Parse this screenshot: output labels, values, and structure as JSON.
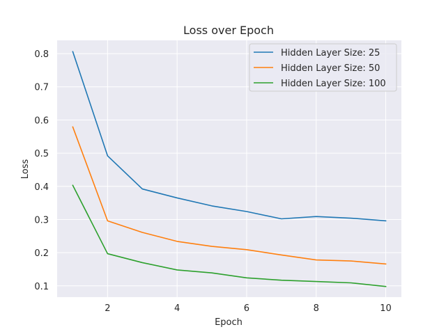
{
  "chart_data": {
    "type": "line",
    "title": "Loss over Epoch",
    "xlabel": "Epoch",
    "ylabel": "Loss",
    "xlim": [
      0.55,
      10.45
    ],
    "ylim": [
      0.066,
      0.84
    ],
    "xticks": [
      2,
      4,
      6,
      8,
      10
    ],
    "yticks": [
      0.1,
      0.2,
      0.3,
      0.4,
      0.5,
      0.6,
      0.7,
      0.8
    ],
    "grid": true,
    "legend_position": "top-right",
    "x": [
      1,
      2,
      3,
      4,
      5,
      6,
      7,
      8,
      9,
      10
    ],
    "series": [
      {
        "name": "Hidden Layer Size: 25",
        "color": "#1f77b4",
        "values": [
          0.806,
          0.492,
          0.392,
          0.365,
          0.341,
          0.324,
          0.302,
          0.309,
          0.304,
          0.296
        ]
      },
      {
        "name": "Hidden Layer Size: 50",
        "color": "#ff7f0e",
        "values": [
          0.579,
          0.296,
          0.261,
          0.234,
          0.219,
          0.209,
          0.193,
          0.178,
          0.175,
          0.166
        ]
      },
      {
        "name": "Hidden Layer Size: 100",
        "color": "#2ca02c",
        "values": [
          0.403,
          0.197,
          0.17,
          0.148,
          0.139,
          0.124,
          0.117,
          0.113,
          0.109,
          0.098
        ]
      }
    ]
  }
}
